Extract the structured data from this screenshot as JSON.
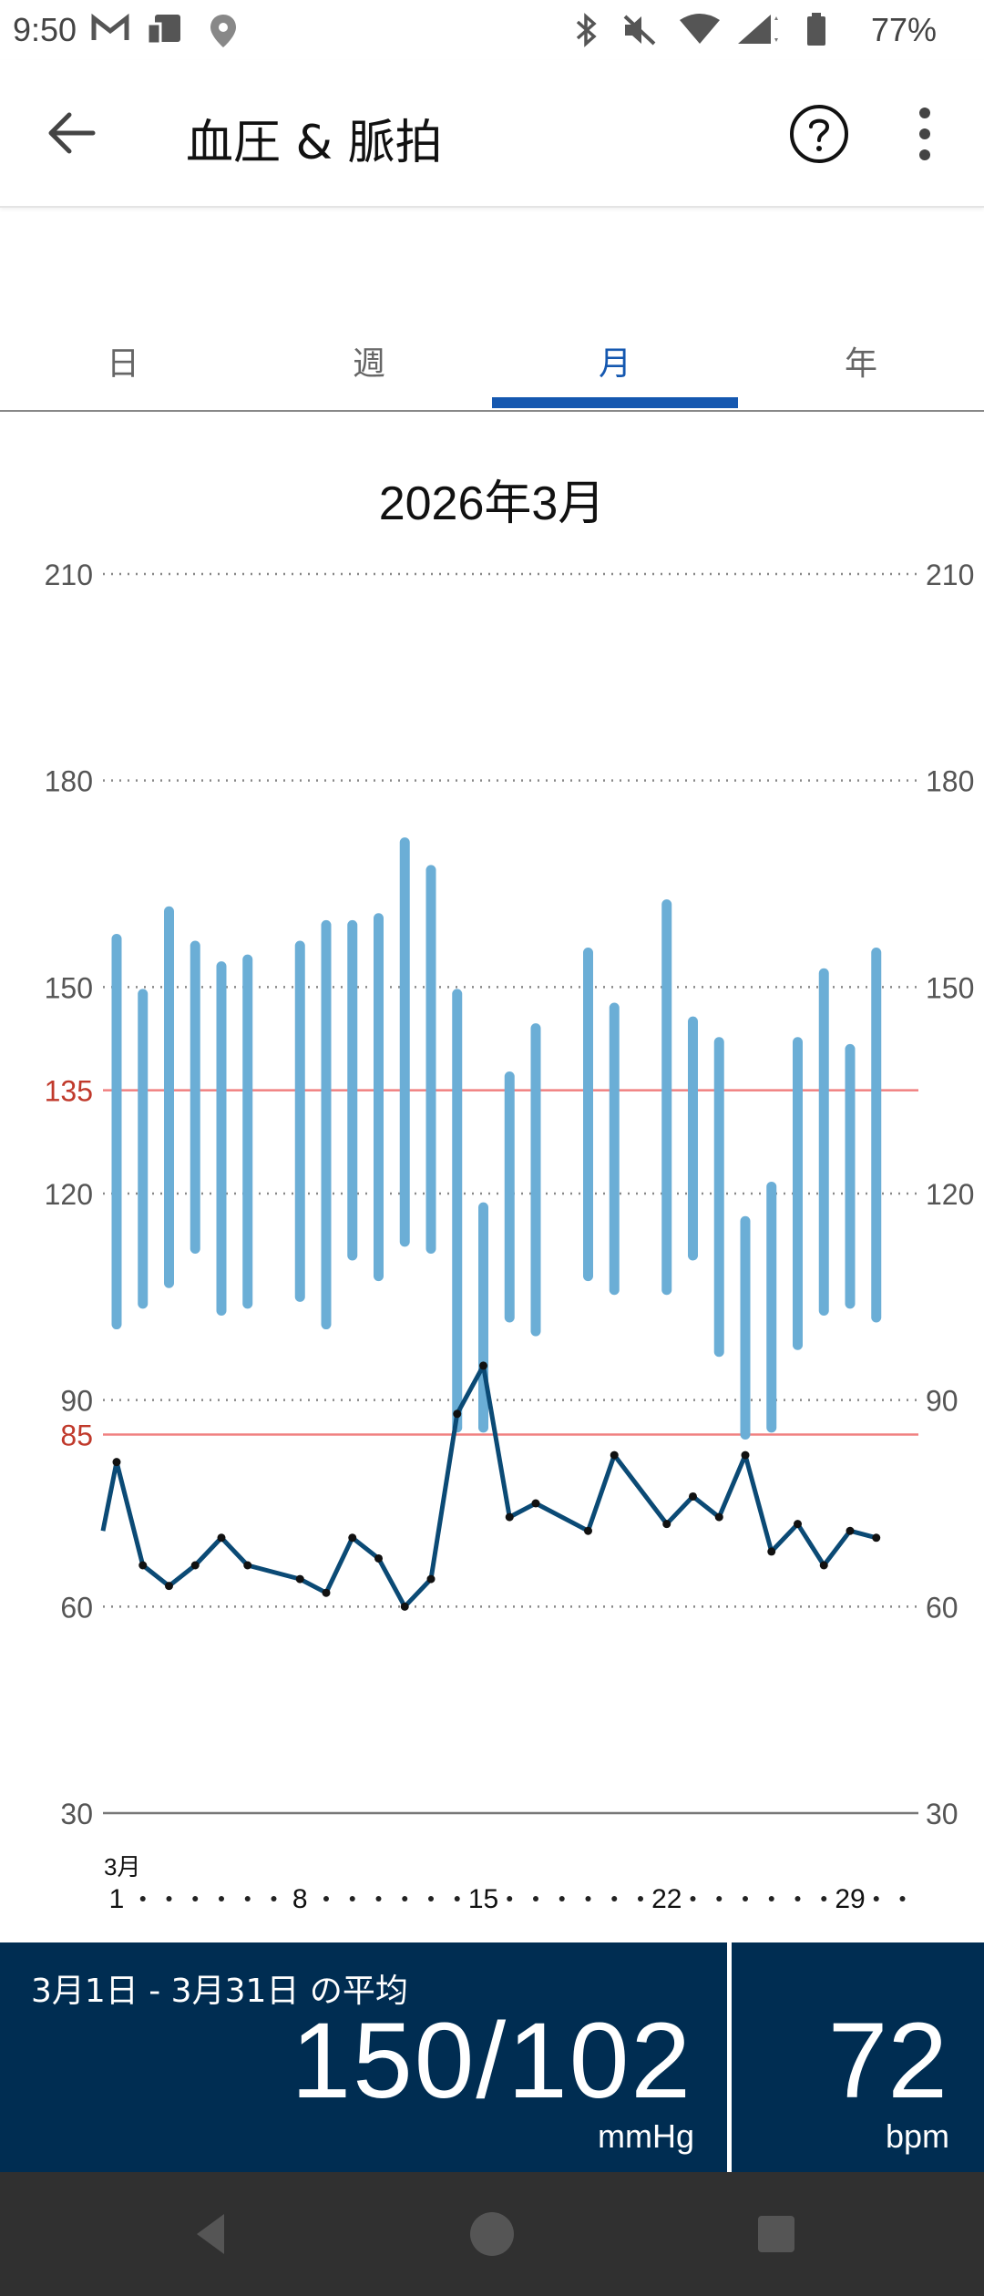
{
  "status_bar": {
    "time": "9:50",
    "battery": "77%",
    "icons": [
      "gmail-icon",
      "device-icon",
      "location-icon",
      "bluetooth-icon",
      "mute-icon",
      "wifi-icon",
      "signal-icon",
      "battery-icon"
    ]
  },
  "app_bar": {
    "title": "血圧 & 脈拍",
    "back_icon": "arrow-left-icon",
    "help_icon": "help-circle-icon",
    "more_icon": "more-vertical-icon"
  },
  "tabs": [
    {
      "label": "日",
      "active": false
    },
    {
      "label": "週",
      "active": false
    },
    {
      "label": "月",
      "active": true
    },
    {
      "label": "年",
      "active": false
    }
  ],
  "chart_data": {
    "type": "bar",
    "title": "2026年3月",
    "month_label": "3月",
    "x_tick_labels": [
      "1",
      "8",
      "15",
      "22",
      "29"
    ],
    "x_label_days": [
      1,
      8,
      15,
      22,
      29
    ],
    "x_days_total": 31,
    "ylim": [
      30,
      210
    ],
    "y_ticks": [
      30,
      60,
      90,
      120,
      150,
      180,
      210
    ],
    "threshold_lines": [
      {
        "value": 135,
        "label": "135"
      },
      {
        "value": 85,
        "label": "85"
      }
    ],
    "colors": {
      "bar": "#6baed6",
      "line": "#0b4a75",
      "threshold": "#f08080",
      "threshold_label": "#c0392b"
    },
    "bp_series": {
      "name": "血圧",
      "days": [
        1,
        2,
        3,
        4,
        5,
        6,
        8,
        9,
        10,
        11,
        12,
        13,
        14,
        15,
        16,
        17,
        19,
        20,
        22,
        23,
        24,
        25,
        26,
        27,
        28,
        29,
        30
      ],
      "systolic": [
        157,
        149,
        161,
        156,
        153,
        154,
        156,
        159,
        159,
        160,
        171,
        167,
        149,
        118,
        137,
        144,
        155,
        147,
        162,
        145,
        142,
        116,
        121,
        142,
        152,
        141,
        155
      ],
      "diastolic": [
        101,
        104,
        107,
        112,
        103,
        104,
        105,
        101,
        111,
        108,
        113,
        112,
        86,
        86,
        102,
        100,
        108,
        106,
        106,
        111,
        97,
        85,
        86,
        98,
        103,
        104,
        102
      ]
    },
    "pulse_series": {
      "name": "脈拍",
      "days": [
        1,
        2,
        3,
        4,
        5,
        6,
        8,
        9,
        10,
        11,
        12,
        13,
        14,
        15,
        16,
        17,
        19,
        20,
        22,
        23,
        24,
        25,
        26,
        27,
        28,
        29,
        30
      ],
      "values": [
        81,
        66,
        63,
        66,
        70,
        66,
        64,
        62,
        70,
        67,
        60,
        64,
        88,
        95,
        73,
        75,
        71,
        82,
        72,
        76,
        73,
        82,
        68,
        72,
        66,
        71,
        70
      ]
    }
  },
  "summary": {
    "period_label": "3月1日 - 3月31日 の平均",
    "bp_value": "150/102",
    "bp_unit": "mmHg",
    "pulse_value": "72",
    "pulse_unit": "bpm"
  },
  "nav_bar": {
    "icons": [
      "nav-back-icon",
      "nav-home-icon",
      "nav-recents-icon"
    ]
  }
}
